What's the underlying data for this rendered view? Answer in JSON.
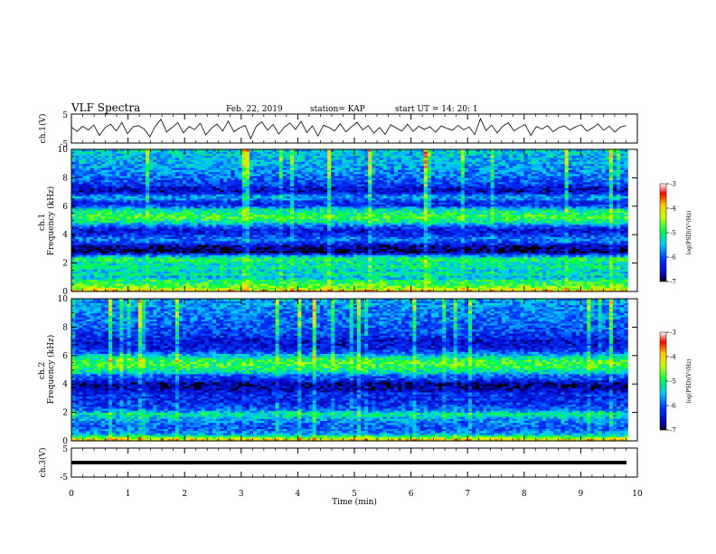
{
  "header": {
    "title": "VLF Spectra",
    "date": "Feb. 22, 2019",
    "station": "station= KAP",
    "start": "start  UT =   14: 20: 1"
  },
  "chart_data": [
    {
      "type": "line",
      "panel": "ch1-waveform",
      "ylabel": "ch.1(V)",
      "ylim": [
        -5,
        5
      ],
      "yticks": [
        "5",
        "-5"
      ],
      "x_range_min": [
        0,
        9.8
      ],
      "values": [
        0.5,
        -1.0,
        0.8,
        -0.5,
        1.2,
        -2.4,
        0.3,
        1.5,
        -0.8,
        2.1,
        -1.8,
        0.6,
        1.0,
        -0.2,
        -2.8,
        0.9,
        3.2,
        -1.2,
        0.4,
        2.0,
        -1.5,
        0.7,
        -0.4,
        1.8,
        -2.2,
        0.1,
        1.6,
        -0.9,
        2.6,
        -1.1,
        0.2,
        1.1,
        -3.5,
        0.8,
        2.3,
        -0.6,
        1.4,
        -1.9,
        0.5,
        1.9,
        -0.3,
        2.5,
        -1.4,
        0.9,
        -2.6,
        1.2,
        0.3,
        -0.8,
        1.7,
        -1.2,
        0.6,
        2.2,
        -0.5,
        1.0,
        -1.6,
        0.4,
        -2.0,
        1.3,
        0.2,
        -0.9,
        1.5,
        -1.0,
        0.8,
        -0.3,
        0.6,
        -1.3,
        0.9,
        0.1,
        -0.6,
        1.1,
        -0.4,
        0.5,
        -2.1,
        3.4,
        -0.7,
        1.2,
        -1.5,
        0.8,
        2.0,
        -0.8,
        0.4,
        1.4,
        -2.4,
        0.7,
        -0.2,
        1.0,
        -1.1,
        0.3,
        0.9,
        -0.5,
        0.6,
        1.3,
        -0.9,
        0.2,
        1.6,
        -0.6,
        0.8,
        -1.2,
        0.5,
        1.0
      ],
      "series": [
        {
          "color": "#000000"
        }
      ]
    },
    {
      "type": "heatmap",
      "panel": "ch1-spectrogram",
      "ylabel": "ch.1\nFrequency (kHz)",
      "ylim": [
        0,
        10
      ],
      "yticks": [
        "0",
        "2",
        "4",
        "6",
        "8",
        "10"
      ],
      "band_profile": [
        [
          0.0,
          -3.8
        ],
        [
          0.3,
          -4.6
        ],
        [
          0.6,
          -4.9
        ],
        [
          0.8,
          -5.0
        ],
        [
          1.0,
          -5.6
        ],
        [
          1.2,
          -5.2
        ],
        [
          1.5,
          -5.4
        ],
        [
          1.7,
          -5.1
        ],
        [
          2.0,
          -5.3
        ],
        [
          2.3,
          -4.9
        ],
        [
          2.6,
          -6.0
        ],
        [
          2.8,
          -6.9
        ],
        [
          3.0,
          -6.8
        ],
        [
          3.2,
          -6.7
        ],
        [
          3.5,
          -6.0
        ],
        [
          3.7,
          -5.8
        ],
        [
          4.0,
          -6.2
        ],
        [
          4.3,
          -6.5
        ],
        [
          4.6,
          -6.0
        ],
        [
          4.9,
          -5.2
        ],
        [
          5.2,
          -4.8
        ],
        [
          5.5,
          -5.0
        ],
        [
          5.8,
          -5.3
        ],
        [
          6.0,
          -6.1
        ],
        [
          6.3,
          -6.3
        ],
        [
          6.6,
          -5.6
        ],
        [
          6.8,
          -5.9
        ],
        [
          7.0,
          -6.6
        ],
        [
          7.3,
          -6.5
        ],
        [
          7.5,
          -6.2
        ],
        [
          7.8,
          -6.0
        ],
        [
          8.0,
          -5.9
        ],
        [
          8.5,
          -5.7
        ],
        [
          9.0,
          -5.6
        ],
        [
          9.5,
          -5.5
        ],
        [
          10.0,
          -5.4
        ]
      ],
      "colorbar": {
        "label": "log(PSD)(V²/Hz)",
        "range": [
          -7,
          -3
        ],
        "ticks": [
          "-3",
          "-4",
          "-5",
          "-6",
          "-7"
        ]
      }
    },
    {
      "type": "heatmap",
      "panel": "ch2-spectrogram",
      "ylabel": "ch.2\nFrequency (kHz)",
      "ylim": [
        0,
        10
      ],
      "yticks": [
        "0",
        "2",
        "4",
        "6",
        "8",
        "10"
      ],
      "band_profile": [
        [
          0.0,
          -3.8
        ],
        [
          0.2,
          -4.4
        ],
        [
          0.5,
          -5.6
        ],
        [
          0.8,
          -5.9
        ],
        [
          1.0,
          -6.0
        ],
        [
          1.3,
          -5.8
        ],
        [
          1.6,
          -5.6
        ],
        [
          1.9,
          -5.1
        ],
        [
          2.2,
          -5.9
        ],
        [
          2.6,
          -6.2
        ],
        [
          3.0,
          -6.3
        ],
        [
          3.3,
          -6.2
        ],
        [
          3.6,
          -6.6
        ],
        [
          4.0,
          -6.8
        ],
        [
          4.3,
          -6.2
        ],
        [
          4.6,
          -6.0
        ],
        [
          4.8,
          -5.4
        ],
        [
          5.1,
          -5.0
        ],
        [
          5.4,
          -4.8
        ],
        [
          5.7,
          -4.9
        ],
        [
          6.0,
          -5.4
        ],
        [
          6.3,
          -6.1
        ],
        [
          6.6,
          -6.4
        ],
        [
          7.0,
          -6.5
        ],
        [
          7.3,
          -6.3
        ],
        [
          7.6,
          -6.1
        ],
        [
          8.0,
          -6.0
        ],
        [
          8.5,
          -5.9
        ],
        [
          9.0,
          -5.8
        ],
        [
          9.5,
          -5.7
        ],
        [
          10.0,
          -5.6
        ]
      ],
      "colorbar": {
        "label": "log(PSD)(V²/Hz)",
        "range": [
          -7,
          -3
        ],
        "ticks": [
          "-3",
          "-4",
          "-5",
          "-6",
          "-7"
        ]
      }
    },
    {
      "type": "line",
      "panel": "ch3-waveform",
      "ylabel": "ch.3(V)",
      "ylim": [
        -5,
        5
      ],
      "yticks": [
        "5",
        "-5"
      ],
      "values": [
        0,
        0
      ],
      "series": [
        {
          "color": "#000000"
        }
      ]
    }
  ],
  "x_axis": {
    "label": "Time (min)",
    "range": [
      0,
      10
    ],
    "ticks": [
      "0",
      "1",
      "2",
      "3",
      "4",
      "5",
      "6",
      "7",
      "8",
      "9",
      "10"
    ]
  }
}
